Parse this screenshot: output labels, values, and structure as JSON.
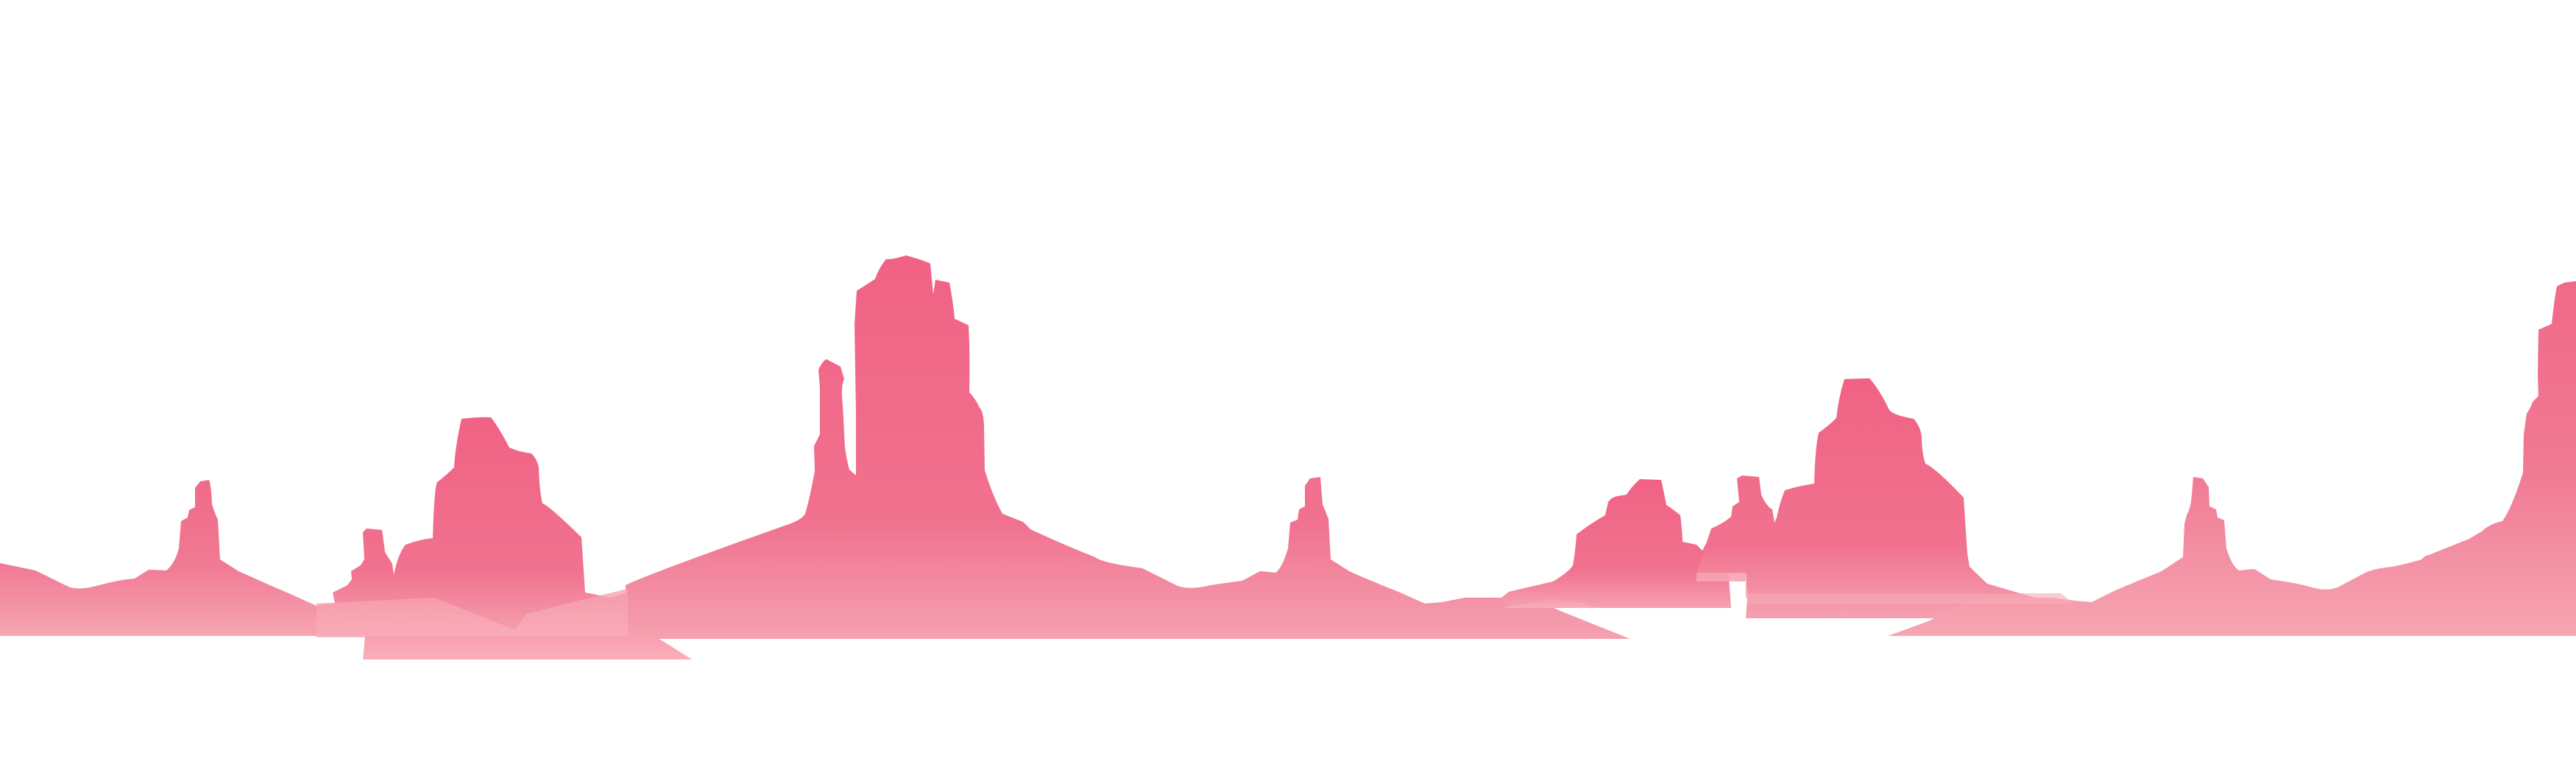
{
  "scene": {
    "description_free": true,
    "palette": {
      "top": "#f06284",
      "mid": "#f0728f",
      "bottom": "#f5a1b0",
      "ground": "#f8a9b5"
    },
    "layers": [
      "back-mesa-left",
      "back-mesa-right",
      "center-butte-group",
      "left-hills",
      "right-hills",
      "small-butte-center-right",
      "ground-patches"
    ]
  }
}
